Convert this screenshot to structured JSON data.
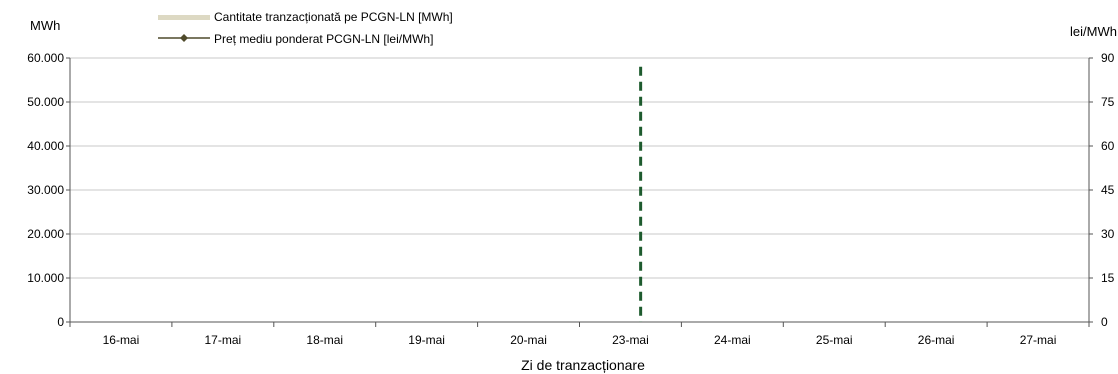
{
  "chart_data": {
    "type": "bar",
    "categories": [
      "16-mai",
      "17-mai",
      "18-mai",
      "19-mai",
      "20-mai",
      "23-mai",
      "24-mai",
      "25-mai",
      "26-mai",
      "27-mai"
    ],
    "xlabel": "Zi de tranzacționare",
    "y_left": {
      "unit": "MWh",
      "range": [
        0,
        60000
      ],
      "ticks": [
        "0",
        "10.000",
        "20.000",
        "30.000",
        "40.000",
        "50.000",
        "60.000"
      ]
    },
    "y_right": {
      "unit": "lei/MWh",
      "range": [
        0,
        90
      ],
      "ticks": [
        "0",
        "15",
        "30",
        "45",
        "60",
        "75",
        "90"
      ]
    },
    "series": [
      {
        "name": "Cantitate tranzacționată pe PCGN-LN [MWh]",
        "kind": "bar",
        "axis": "left",
        "color": "#ddd9c3",
        "values": [
          0,
          0,
          0,
          0,
          0,
          0,
          0,
          0,
          0,
          0
        ]
      },
      {
        "name": "Preț mediu ponderat PCGN-LN [lei/MWh]",
        "kind": "line",
        "axis": "right",
        "color": "#4f4a2b",
        "values": [
          null,
          null,
          null,
          null,
          null,
          null,
          null,
          null,
          null,
          null
        ]
      }
    ],
    "separator": {
      "after_category": "20-mai",
      "style": "dashed",
      "color": "#1e5b2e",
      "from_value": 0,
      "to_value": 58000
    },
    "grid": true,
    "legend_position": "top-left"
  }
}
